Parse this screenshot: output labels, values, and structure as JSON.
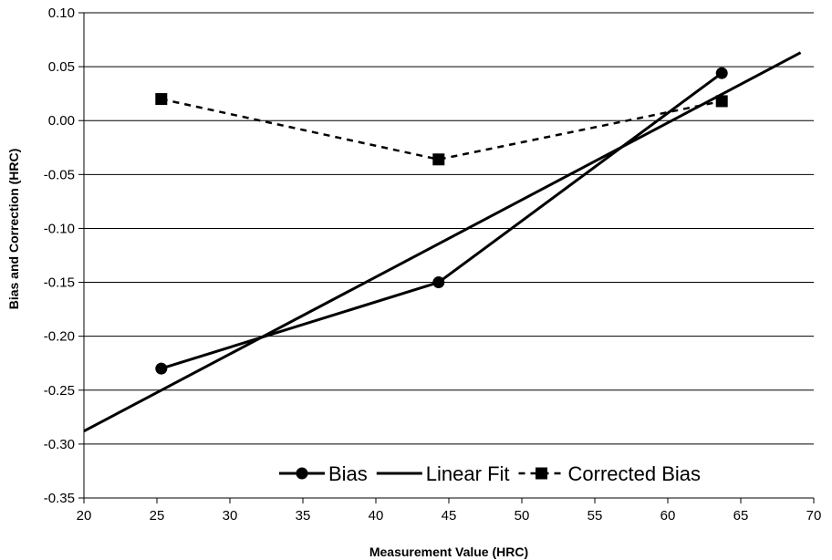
{
  "chart_data": {
    "type": "line",
    "xlabel": "Measurement Value (HRC)",
    "ylabel": "Bias and Correction (HRC)",
    "xlim": [
      20,
      70
    ],
    "ylim": [
      -0.35,
      0.1
    ],
    "x_ticks": [
      "20",
      "25",
      "30",
      "35",
      "40",
      "45",
      "50",
      "55",
      "60",
      "65",
      "70"
    ],
    "y_ticks": [
      "0.10",
      "0.05",
      "0.00",
      "-0.05",
      "-0.10",
      "-0.15",
      "-0.20",
      "-0.25",
      "-0.30",
      "-0.35"
    ],
    "grid": "horizontal",
    "legend_position": "bottom-right",
    "series": [
      {
        "name": "Bias",
        "marker": "circle",
        "line": "solid",
        "x": [
          25.3,
          44.3,
          63.7
        ],
        "y": [
          -0.23,
          -0.15,
          0.044
        ]
      },
      {
        "name": "Linear Fit",
        "marker": "none",
        "line": "solid",
        "x": [
          20,
          69.1
        ],
        "y": [
          -0.288,
          0.063
        ]
      },
      {
        "name": "Corrected Bias",
        "marker": "square",
        "line": "dashed",
        "x": [
          25.3,
          44.3,
          63.7
        ],
        "y": [
          0.02,
          -0.036,
          0.018
        ]
      }
    ]
  }
}
